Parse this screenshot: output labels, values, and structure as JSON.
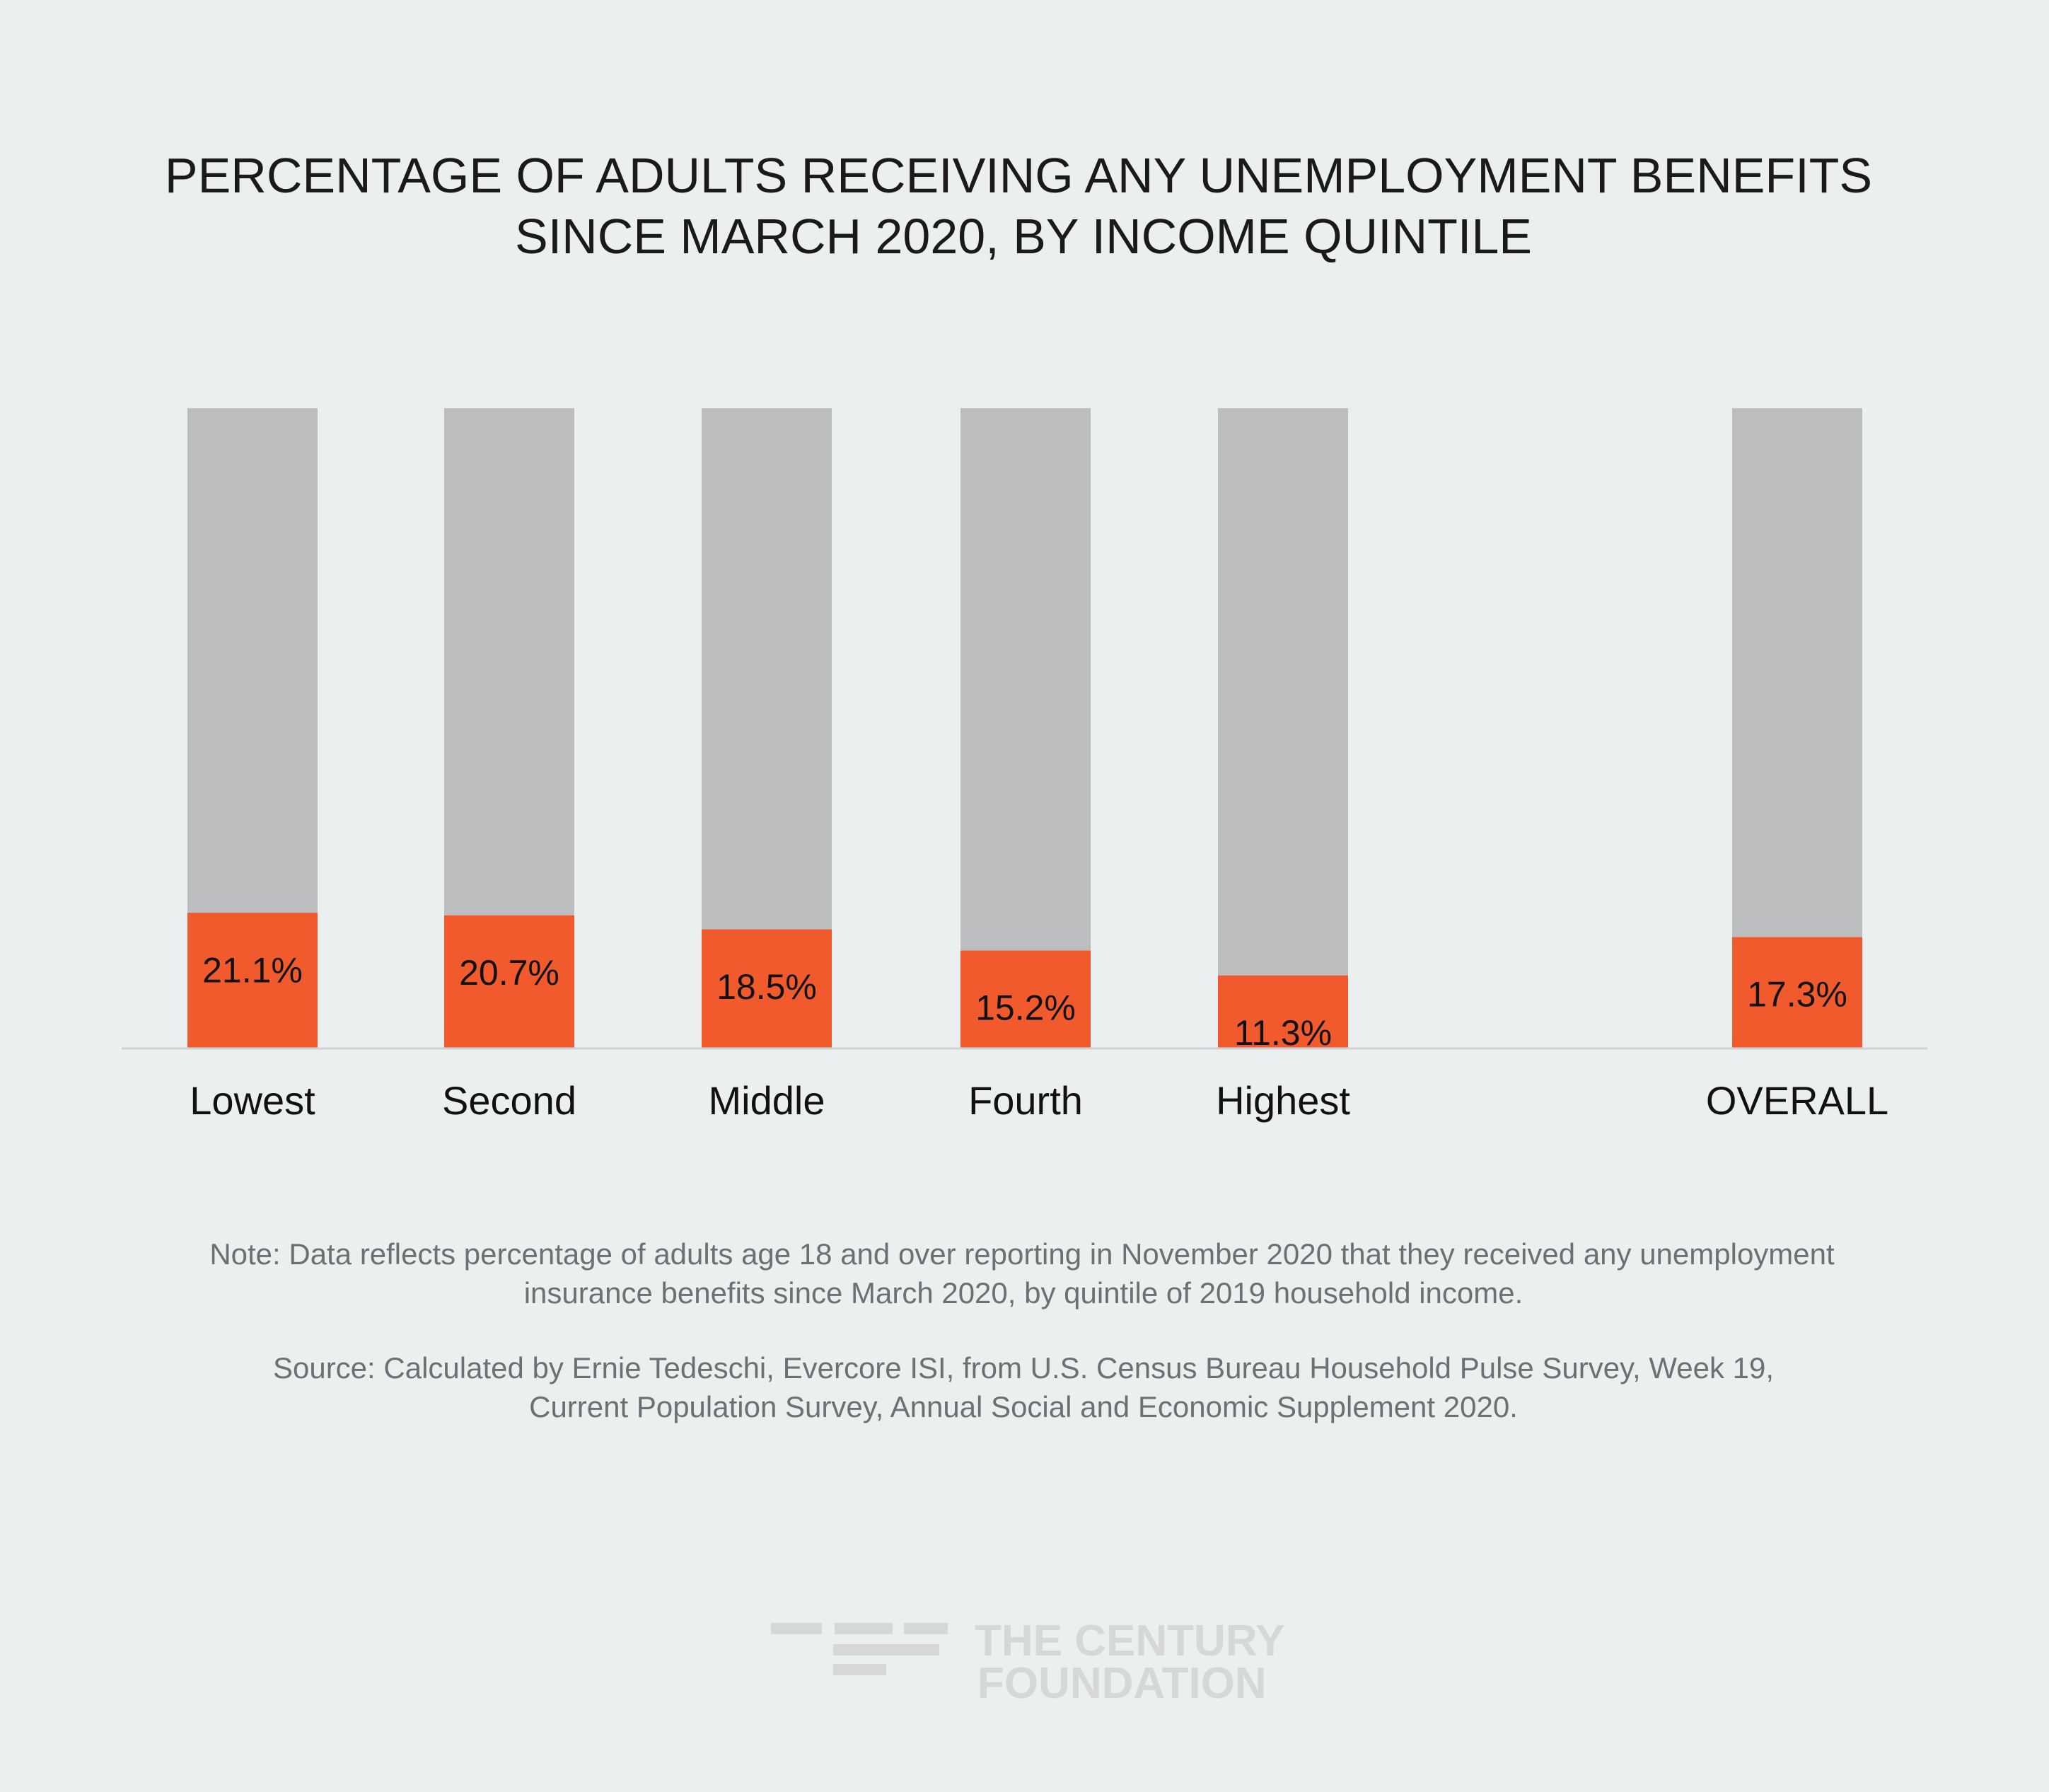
{
  "colors": {
    "background": "#eceff0",
    "bar_background": "#bcbdbf",
    "bar_value": "#f05a2d",
    "baseline": "#cfd1d3",
    "note_text": "#6d6f72",
    "logo": "#d5d7d9"
  },
  "chart_data": {
    "type": "bar",
    "title": "PERCENTAGE OF ADULTS RECEIVING ANY UNEMPLOYMENT BENEFITS SINCE MARCH 2020, BY INCOME QUINTILE",
    "title_lines": [
      "PERCENTAGE OF ADULTS RECEIVING ANY UNEMPLOYMENT BENEFITS",
      "SINCE MARCH 2020, BY INCOME QUINTILE"
    ],
    "categories": [
      "Lowest",
      "Second",
      "Middle",
      "Fourth",
      "Highest",
      "OVERALL"
    ],
    "values": [
      21.1,
      20.7,
      18.5,
      15.2,
      11.3,
      17.3
    ],
    "value_labels": [
      "21.1%",
      "20.7%",
      "18.5%",
      "15.2%",
      "11.3%",
      "17.3%"
    ],
    "unit": "%",
    "ylim": [
      0,
      100
    ],
    "xlabel": "",
    "ylabel": "",
    "grid": false,
    "legend": "none"
  },
  "notes": {
    "note_lines": [
      "Note: Data reflects percentage of adults age 18 and over reporting in November 2020 that they received any unemployment",
      "insurance benefits since March 2020, by quintile of 2019 household income."
    ],
    "source_lines": [
      "Source: Calculated by Ernie Tedeschi, Evercore ISI, from U.S. Census Bureau Household Pulse Survey, Week 19,",
      "Current Population Survey, Annual Social and Economic Supplement 2020."
    ]
  },
  "logo": {
    "icon": "century-foundation-logo-icon",
    "line1": "THE CENTURY",
    "line2": "FOUNDATION"
  }
}
